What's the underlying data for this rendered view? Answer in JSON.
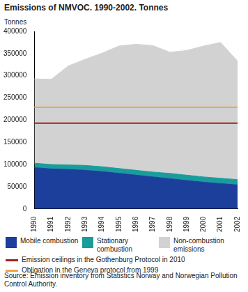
{
  "chart_data": {
    "type": "area",
    "title": "Emissions of NMVOC. 1990-2002. Tonnes",
    "y_label": "Tonnes",
    "categories": [
      "1990",
      "1991",
      "1992",
      "1993",
      "1994",
      "1995",
      "1996",
      "1997",
      "1998",
      "1999",
      "2000",
      "2001",
      "2002"
    ],
    "series": [
      {
        "name": "Mobile combustion",
        "color": "#1c3f9c",
        "values": [
          93000,
          90000,
          89000,
          87000,
          84000,
          80000,
          76000,
          72000,
          68000,
          64000,
          60000,
          57000,
          54000
        ]
      },
      {
        "name": "Stationary combustion",
        "color": "#1b9c9c",
        "values": [
          10000,
          10000,
          10000,
          11000,
          11000,
          11000,
          11000,
          11000,
          12000,
          12000,
          12000,
          12000,
          12000
        ]
      },
      {
        "name": "Non-combustion emissions",
        "color": "#d2d2d2",
        "values": [
          190000,
          192000,
          223000,
          239000,
          256000,
          276000,
          284000,
          285000,
          273000,
          281000,
          295000,
          306000,
          267000
        ]
      }
    ],
    "reference_lines": [
      {
        "name": "Emission ceilings in the Gothenburg Protocol in 2010",
        "color": "#a3201e",
        "value": 193000
      },
      {
        "name": "Obligation in the Geneva protocol from 1999",
        "color": "#f2a248",
        "value": 229000
      }
    ],
    "stacked": true,
    "ylim": [
      0,
      400000
    ],
    "yticks": [
      0,
      50000,
      100000,
      150000,
      200000,
      250000,
      300000,
      350000,
      400000
    ],
    "grid": false,
    "legend": "bottom",
    "source": "Source: Emission inventory from Statistics Norway and Norwegian Pollution Control Authority."
  }
}
